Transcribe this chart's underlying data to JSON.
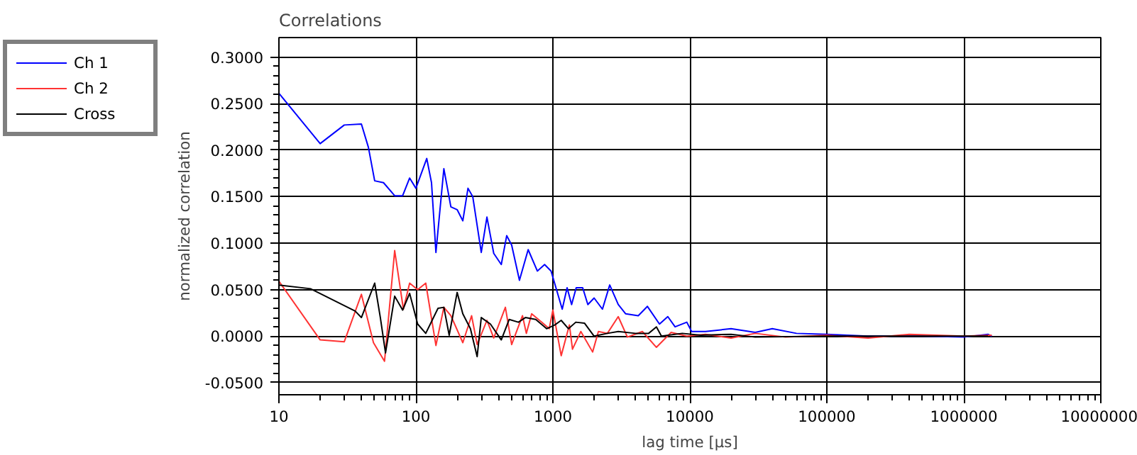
{
  "chart_data": {
    "type": "line",
    "title": "Correlations",
    "xlabel": "lag time [µs]",
    "ylabel": "normalized correlation",
    "log": "x",
    "grid": true,
    "legend": "top left",
    "marker": "none",
    "line_style": "solid",
    "xlim": [
      10,
      10000000
    ],
    "xticks": [
      10,
      100,
      1000,
      10000,
      100000,
      1000000,
      10000000
    ],
    "ylim": [
      -0.063,
      0.321
    ],
    "yticks": [
      {
        "value": -0.05,
        "label": "-0.0500"
      },
      {
        "value": 0,
        "label": "0.0000"
      },
      {
        "value": 0.05,
        "label": "0.0500"
      },
      {
        "value": 0.1,
        "label": "0.1000"
      },
      {
        "value": 0.15,
        "label": "0.1500"
      },
      {
        "value": 0.2,
        "label": "0.2000"
      },
      {
        "value": 0.25,
        "label": "0.2500"
      },
      {
        "value": 0.3,
        "label": "0.3000"
      }
    ],
    "series": [
      {
        "name": "Ch 1",
        "color": "#0000ff",
        "x": [
          10,
          20,
          30,
          40,
          45,
          50,
          58,
          70,
          80,
          90,
          100,
          120,
          130,
          140,
          160,
          180,
          200,
          220,
          240,
          260,
          300,
          330,
          370,
          420,
          460,
          500,
          570,
          660,
          770,
          870,
          970,
          1170,
          1270,
          1370,
          1480,
          1650,
          1800,
          2000,
          2300,
          2600,
          3000,
          3400,
          4200,
          4900,
          6000,
          6900,
          7800,
          9500,
          10300,
          13000,
          20000,
          30000,
          40000,
          60000,
          100000,
          200000,
          500000,
          1000000,
          1500000,
          1600000
        ],
        "values": [
          0.261,
          0.207,
          0.227,
          0.228,
          0.203,
          0.167,
          0.165,
          0.151,
          0.151,
          0.17,
          0.159,
          0.191,
          0.165,
          0.09,
          0.18,
          0.139,
          0.136,
          0.124,
          0.159,
          0.15,
          0.09,
          0.128,
          0.089,
          0.077,
          0.108,
          0.098,
          0.06,
          0.093,
          0.07,
          0.077,
          0.07,
          0.029,
          0.052,
          0.034,
          0.052,
          0.052,
          0.034,
          0.041,
          0.029,
          0.055,
          0.034,
          0.024,
          0.022,
          0.032,
          0.013,
          0.021,
          0.01,
          0.015,
          0.005,
          0.005,
          0.008,
          0.004,
          0.008,
          0.003,
          0.002,
          0.0,
          0.0,
          -0.001,
          0.002,
          0.0
        ]
      },
      {
        "name": "Ch 2",
        "color": "#ff3333",
        "x": [
          10,
          20,
          30,
          40,
          49,
          59,
          70,
          81,
          90,
          103,
          118,
          140,
          160,
          180,
          220,
          255,
          280,
          330,
          370,
          450,
          500,
          600,
          640,
          700,
          860,
          940,
          1000,
          1150,
          1320,
          1390,
          1600,
          1950,
          2150,
          2500,
          3000,
          3500,
          4500,
          5700,
          7300,
          9500,
          13000,
          20000,
          30000,
          50000,
          100000,
          200000,
          400000,
          1000000,
          1600000
        ],
        "values": [
          0.059,
          -0.004,
          -0.006,
          0.045,
          -0.007,
          -0.027,
          0.092,
          0.029,
          0.057,
          0.05,
          0.057,
          -0.01,
          0.031,
          0.022,
          -0.007,
          0.022,
          -0.009,
          0.017,
          -0.002,
          0.031,
          -0.009,
          0.022,
          0.003,
          0.024,
          0.013,
          0.008,
          0.028,
          -0.021,
          0.012,
          -0.014,
          0.005,
          -0.017,
          0.005,
          0.003,
          0.021,
          -0.001,
          0.005,
          -0.012,
          0.004,
          0.0,
          0.002,
          -0.002,
          0.003,
          -0.001,
          0.001,
          -0.002,
          0.002,
          0.0,
          0.001
        ]
      },
      {
        "name": "Cross",
        "color": "#000000",
        "x": [
          10,
          17,
          36,
          40,
          50,
          55,
          60,
          70,
          80,
          90,
          103,
          118,
          145,
          160,
          175,
          200,
          220,
          250,
          280,
          300,
          350,
          420,
          480,
          560,
          630,
          750,
          900,
          1030,
          1150,
          1300,
          1470,
          1700,
          2000,
          2500,
          3000,
          4000,
          5000,
          5700,
          6200,
          8800,
          12000,
          20000,
          30000,
          100000,
          200000,
          500000,
          1000000,
          1500000
        ],
        "values": [
          0.055,
          0.051,
          0.027,
          0.02,
          0.057,
          0.02,
          -0.018,
          0.043,
          0.028,
          0.046,
          0.013,
          0.003,
          0.03,
          0.031,
          0.001,
          0.047,
          0.024,
          0.008,
          -0.022,
          0.02,
          0.013,
          -0.004,
          0.018,
          0.015,
          0.02,
          0.018,
          0.008,
          0.012,
          0.017,
          0.008,
          0.015,
          0.014,
          0.0,
          0.003,
          0.005,
          0.003,
          0.003,
          0.01,
          0.0,
          0.003,
          0.001,
          0.002,
          -0.001,
          0.0,
          0.0,
          0.0,
          0.0,
          0.0
        ]
      }
    ]
  }
}
